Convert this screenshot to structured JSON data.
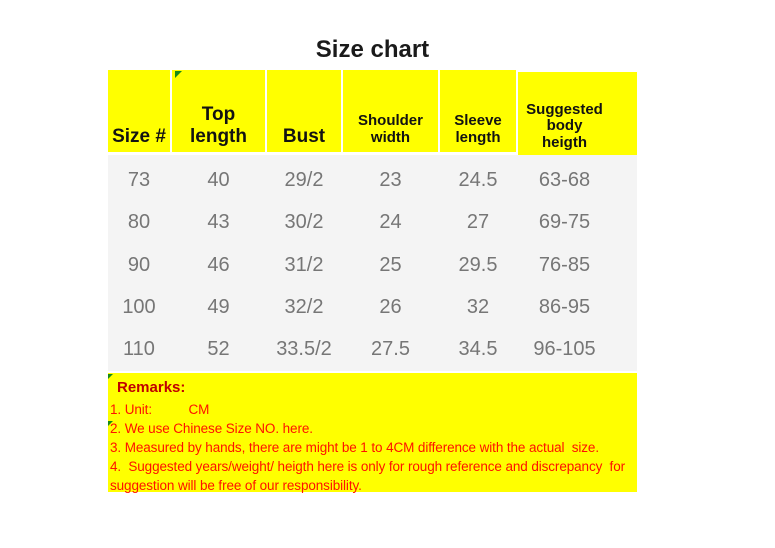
{
  "title": "Size chart",
  "colors": {
    "header_bg": "#ffff00",
    "remarks_bg": "#ffff00",
    "body_bg": "#f4f4f4",
    "header_text": "#121212",
    "body_text": "#767676",
    "remarks_heading_text": "#c00000",
    "remarks_text": "#ff1100",
    "marker_green": "#188a18"
  },
  "table": {
    "columns": [
      {
        "label": "Size #"
      },
      {
        "label": "Top\nlength"
      },
      {
        "label": "Bust"
      },
      {
        "label": "Shoulder\nwidth"
      },
      {
        "label": "Sleeve\nlength"
      },
      {
        "label": "Suggested\nbody\nheigth"
      }
    ],
    "rows": [
      [
        "73",
        "40",
        "29/2",
        "23",
        "24.5",
        "63-68"
      ],
      [
        "80",
        "43",
        "30/2",
        "24",
        "27",
        "69-75"
      ],
      [
        "90",
        "46",
        "31/2",
        "25",
        "29.5",
        "76-85"
      ],
      [
        "100",
        "49",
        "32/2",
        "26",
        "32",
        "86-95"
      ],
      [
        "110",
        "52",
        "33.5/2",
        "27.5",
        "34.5",
        "96-105"
      ]
    ]
  },
  "remarks": {
    "heading": "Remarks:",
    "lines": [
      "1. Unit:          CM",
      "2. We use Chinese Size NO. here.",
      "3. Measured by hands, there are might be 1 to 4CM difference with the actual  size.",
      "4.  Suggested years/weight/ heigth here is only for rough reference and discrepancy  for",
      "suggestion will be free of our responsibility."
    ]
  },
  "chart_data": {
    "type": "table",
    "title": "Size chart",
    "unit": "CM",
    "columns": [
      "Size #",
      "Top length",
      "Bust",
      "Shoulder width",
      "Sleeve length",
      "Suggested body heigth"
    ],
    "rows": [
      [
        "73",
        "40",
        "29/2",
        "23",
        "24.5",
        "63-68"
      ],
      [
        "80",
        "43",
        "30/2",
        "24",
        "27",
        "69-75"
      ],
      [
        "90",
        "46",
        "31/2",
        "25",
        "29.5",
        "76-85"
      ],
      [
        "100",
        "49",
        "32/2",
        "26",
        "32",
        "86-95"
      ],
      [
        "110",
        "52",
        "33.5/2",
        "27.5",
        "34.5",
        "96-105"
      ]
    ]
  }
}
